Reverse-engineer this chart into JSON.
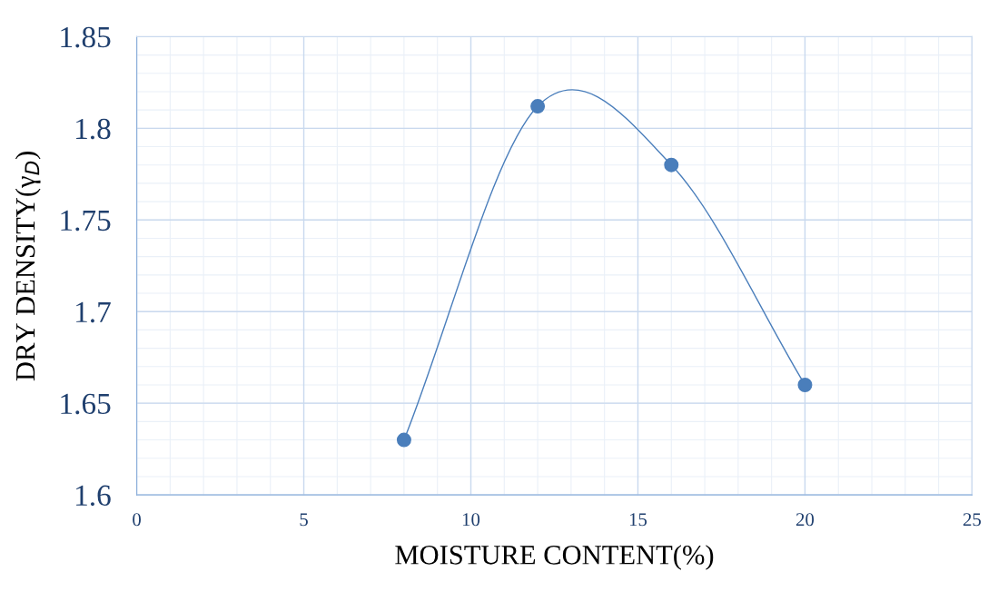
{
  "chart_data": {
    "type": "line",
    "xlabel": "MOISTURE CONTENT(%)",
    "ylabel": "DRY DENSITY(γ$_{D}$)",
    "x": [
      8,
      12,
      16,
      20
    ],
    "series": [
      {
        "color": "#4a7ebb",
        "values": [
          1.63,
          1.812,
          1.78,
          1.66
        ]
      }
    ],
    "marker": "circle",
    "line_style": "solid",
    "grid": true,
    "xlim": [
      0,
      25
    ],
    "xticks": [
      0,
      5,
      10,
      15,
      20,
      25
    ],
    "ylim": [
      1.6,
      1.85
    ],
    "yticks": [
      1.6,
      1.65,
      1.7,
      1.75,
      1.8,
      1.85
    ]
  }
}
